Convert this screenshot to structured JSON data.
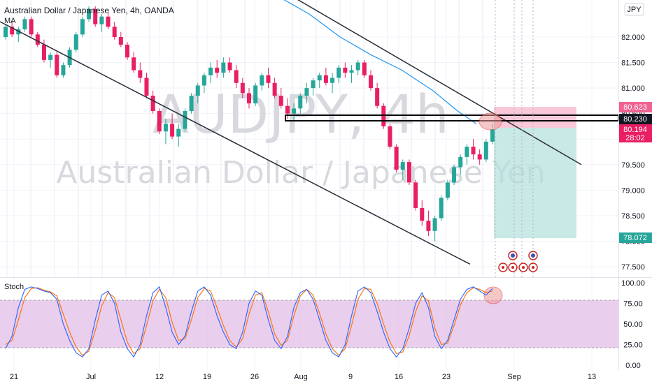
{
  "header": {
    "symbol_title": "Australian Dollar / Japanese Yen, 4h, OANDA",
    "indicator_label": "MA",
    "currency_button": "JPY"
  },
  "watermark": {
    "ticker": "AUDJPY, 4h",
    "name": "Australian Dollar / Japanese Yen"
  },
  "stoch_label": "Stoch",
  "price_axis": {
    "ticks": [
      "82.000",
      "81.500",
      "81.000",
      "80.500",
      "80.000",
      "79.500",
      "79.000",
      "78.500",
      "78.000",
      "77.500"
    ],
    "top_partial": "8"
  },
  "price_badges": {
    "target": "80.623",
    "entry": "80.230",
    "current": "80.194",
    "countdown": "28:02",
    "stop": "78.072"
  },
  "stoch_axis": [
    "100.00",
    "75.00",
    "50.00",
    "25.00",
    "0.00"
  ],
  "time_axis": [
    "21",
    "Jul",
    "12",
    "19",
    "26",
    "Aug",
    "9",
    "16",
    "23",
    "Sep",
    "13"
  ],
  "colors": {
    "up": "#26a69a",
    "down": "#e91e63",
    "ma": "#2196f3",
    "stoch_k": "#2962ff",
    "stoch_d": "#ff6d00",
    "stoch_band": "#e1bee7",
    "target_zone": "#f8bbd0",
    "stop_zone": "#b2dfdb",
    "highlight": "#ef9a9a"
  },
  "chart_data": {
    "type": "candlestick",
    "title": "Australian Dollar / Japanese Yen, 4h, OANDA",
    "price_range": [
      77.3,
      82.5
    ],
    "channel_upper": [
      [
        0.33,
        83.8
      ],
      [
        0.94,
        79.5
      ]
    ],
    "channel_lower": [
      [
        0.0,
        82.3
      ],
      [
        0.76,
        77.55
      ]
    ],
    "ma_series": [
      [
        0.42,
        83.0
      ],
      [
        0.5,
        82.45
      ],
      [
        0.55,
        82.0
      ],
      [
        0.6,
        81.65
      ],
      [
        0.65,
        81.35
      ],
      [
        0.7,
        80.95
      ],
      [
        0.74,
        80.55
      ],
      [
        0.77,
        80.3
      ]
    ],
    "horizontal_zone": [
      80.18,
      80.3
    ],
    "trade": {
      "entry": 80.23,
      "target": 80.623,
      "stop": 78.072
    },
    "candles": [
      [
        82.0,
        82.25,
        81.95,
        82.2
      ],
      [
        82.2,
        82.3,
        82.0,
        82.05
      ],
      [
        82.05,
        82.2,
        81.9,
        82.15
      ],
      [
        82.15,
        82.4,
        82.1,
        82.35
      ],
      [
        82.35,
        82.4,
        82.0,
        82.05
      ],
      [
        82.05,
        82.1,
        81.8,
        81.85
      ],
      [
        81.85,
        81.95,
        81.5,
        81.55
      ],
      [
        81.55,
        81.7,
        81.4,
        81.65
      ],
      [
        81.65,
        81.7,
        81.2,
        81.25
      ],
      [
        81.25,
        81.5,
        81.2,
        81.45
      ],
      [
        81.45,
        81.8,
        81.4,
        81.75
      ],
      [
        81.75,
        82.1,
        81.7,
        82.05
      ],
      [
        82.05,
        82.4,
        82.0,
        82.35
      ],
      [
        82.35,
        82.6,
        82.3,
        82.55
      ],
      [
        82.55,
        82.6,
        82.2,
        82.25
      ],
      [
        82.25,
        82.45,
        82.1,
        82.4
      ],
      [
        82.4,
        82.5,
        82.15,
        82.2
      ],
      [
        82.2,
        82.3,
        81.95,
        82.0
      ],
      [
        82.0,
        82.1,
        81.8,
        81.85
      ],
      [
        81.85,
        81.9,
        81.55,
        81.6
      ],
      [
        81.6,
        81.7,
        81.3,
        81.35
      ],
      [
        81.35,
        81.5,
        81.1,
        81.2
      ],
      [
        81.2,
        81.3,
        80.8,
        80.85
      ],
      [
        80.85,
        80.95,
        80.5,
        80.55
      ],
      [
        80.55,
        80.6,
        80.1,
        80.15
      ],
      [
        80.15,
        80.4,
        79.9,
        80.3
      ],
      [
        80.3,
        80.5,
        80.0,
        80.05
      ],
      [
        80.05,
        80.3,
        79.85,
        80.2
      ],
      [
        80.2,
        80.6,
        80.15,
        80.55
      ],
      [
        80.55,
        80.9,
        80.5,
        80.85
      ],
      [
        80.85,
        81.1,
        80.7,
        81.05
      ],
      [
        81.05,
        81.3,
        80.9,
        81.25
      ],
      [
        81.25,
        81.5,
        81.1,
        81.4
      ],
      [
        81.4,
        81.55,
        81.2,
        81.3
      ],
      [
        81.3,
        81.6,
        81.2,
        81.5
      ],
      [
        81.5,
        81.6,
        81.3,
        81.35
      ],
      [
        81.35,
        81.45,
        81.0,
        81.1
      ],
      [
        81.1,
        81.2,
        80.8,
        80.9
      ],
      [
        80.9,
        81.0,
        80.6,
        80.7
      ],
      [
        80.7,
        81.1,
        80.65,
        81.05
      ],
      [
        81.05,
        81.3,
        80.95,
        81.25
      ],
      [
        81.25,
        81.4,
        81.0,
        81.1
      ],
      [
        81.1,
        81.2,
        80.8,
        80.85
      ],
      [
        80.85,
        81.0,
        80.6,
        80.65
      ],
      [
        80.65,
        80.8,
        80.4,
        80.5
      ],
      [
        80.5,
        80.7,
        80.35,
        80.6
      ],
      [
        80.6,
        80.9,
        80.5,
        80.85
      ],
      [
        80.85,
        81.1,
        80.7,
        81.0
      ],
      [
        81.0,
        81.2,
        80.85,
        81.15
      ],
      [
        81.15,
        81.3,
        81.0,
        81.25
      ],
      [
        81.25,
        81.4,
        81.05,
        81.1
      ],
      [
        81.1,
        81.3,
        80.9,
        81.2
      ],
      [
        81.2,
        81.45,
        81.1,
        81.4
      ],
      [
        81.4,
        81.5,
        81.2,
        81.3
      ],
      [
        81.3,
        81.45,
        81.1,
        81.35
      ],
      [
        81.35,
        81.55,
        81.25,
        81.5
      ],
      [
        81.5,
        81.55,
        81.2,
        81.25
      ],
      [
        81.25,
        81.35,
        80.95,
        81.0
      ],
      [
        81.0,
        81.1,
        80.6,
        80.65
      ],
      [
        80.65,
        80.7,
        80.2,
        80.25
      ],
      [
        80.25,
        80.3,
        79.8,
        79.85
      ],
      [
        79.85,
        79.9,
        79.35,
        79.4
      ],
      [
        79.4,
        79.6,
        79.2,
        79.55
      ],
      [
        79.55,
        79.6,
        79.1,
        79.15
      ],
      [
        79.15,
        79.2,
        78.6,
        78.65
      ],
      [
        78.65,
        78.8,
        78.3,
        78.4
      ],
      [
        78.4,
        78.6,
        78.1,
        78.2
      ],
      [
        78.2,
        78.5,
        78.0,
        78.45
      ],
      [
        78.45,
        78.9,
        78.4,
        78.85
      ],
      [
        78.85,
        79.2,
        78.8,
        79.15
      ],
      [
        79.15,
        79.5,
        79.1,
        79.45
      ],
      [
        79.45,
        79.7,
        79.3,
        79.65
      ],
      [
        79.65,
        79.9,
        79.5,
        79.85
      ],
      [
        79.85,
        80.0,
        79.6,
        79.7
      ],
      [
        79.7,
        79.8,
        79.5,
        79.6
      ],
      [
        79.6,
        80.0,
        79.55,
        79.95
      ],
      [
        79.95,
        80.3,
        79.9,
        80.19
      ]
    ],
    "stoch_k": [
      20,
      35,
      70,
      92,
      95,
      93,
      90,
      88,
      80,
      50,
      30,
      15,
      10,
      20,
      55,
      85,
      90,
      75,
      40,
      20,
      10,
      25,
      60,
      88,
      95,
      70,
      40,
      25,
      35,
      65,
      90,
      95,
      85,
      60,
      40,
      25,
      20,
      40,
      75,
      90,
      85,
      55,
      30,
      20,
      35,
      70,
      88,
      92,
      80,
      55,
      30,
      15,
      10,
      25,
      60,
      90,
      95,
      88,
      65,
      40,
      20,
      10,
      20,
      45,
      75,
      88,
      70,
      35,
      20,
      30,
      55,
      80,
      92,
      95,
      90,
      85,
      93
    ],
    "stoch_d": [
      25,
      30,
      55,
      82,
      93,
      94,
      91,
      89,
      84,
      62,
      40,
      22,
      12,
      17,
      42,
      72,
      88,
      82,
      55,
      28,
      14,
      20,
      48,
      78,
      92,
      82,
      52,
      30,
      32,
      55,
      82,
      93,
      90,
      70,
      48,
      30,
      22,
      32,
      62,
      85,
      88,
      65,
      38,
      24,
      30,
      60,
      84,
      92,
      85,
      63,
      38,
      20,
      12,
      20,
      48,
      80,
      93,
      92,
      75,
      50,
      28,
      14,
      16,
      36,
      65,
      84,
      78,
      45,
      25,
      27,
      48,
      73,
      88,
      94,
      92,
      88,
      90
    ],
    "stoch_range": [
      0,
      100
    ],
    "stoch_band": [
      20,
      80
    ]
  }
}
